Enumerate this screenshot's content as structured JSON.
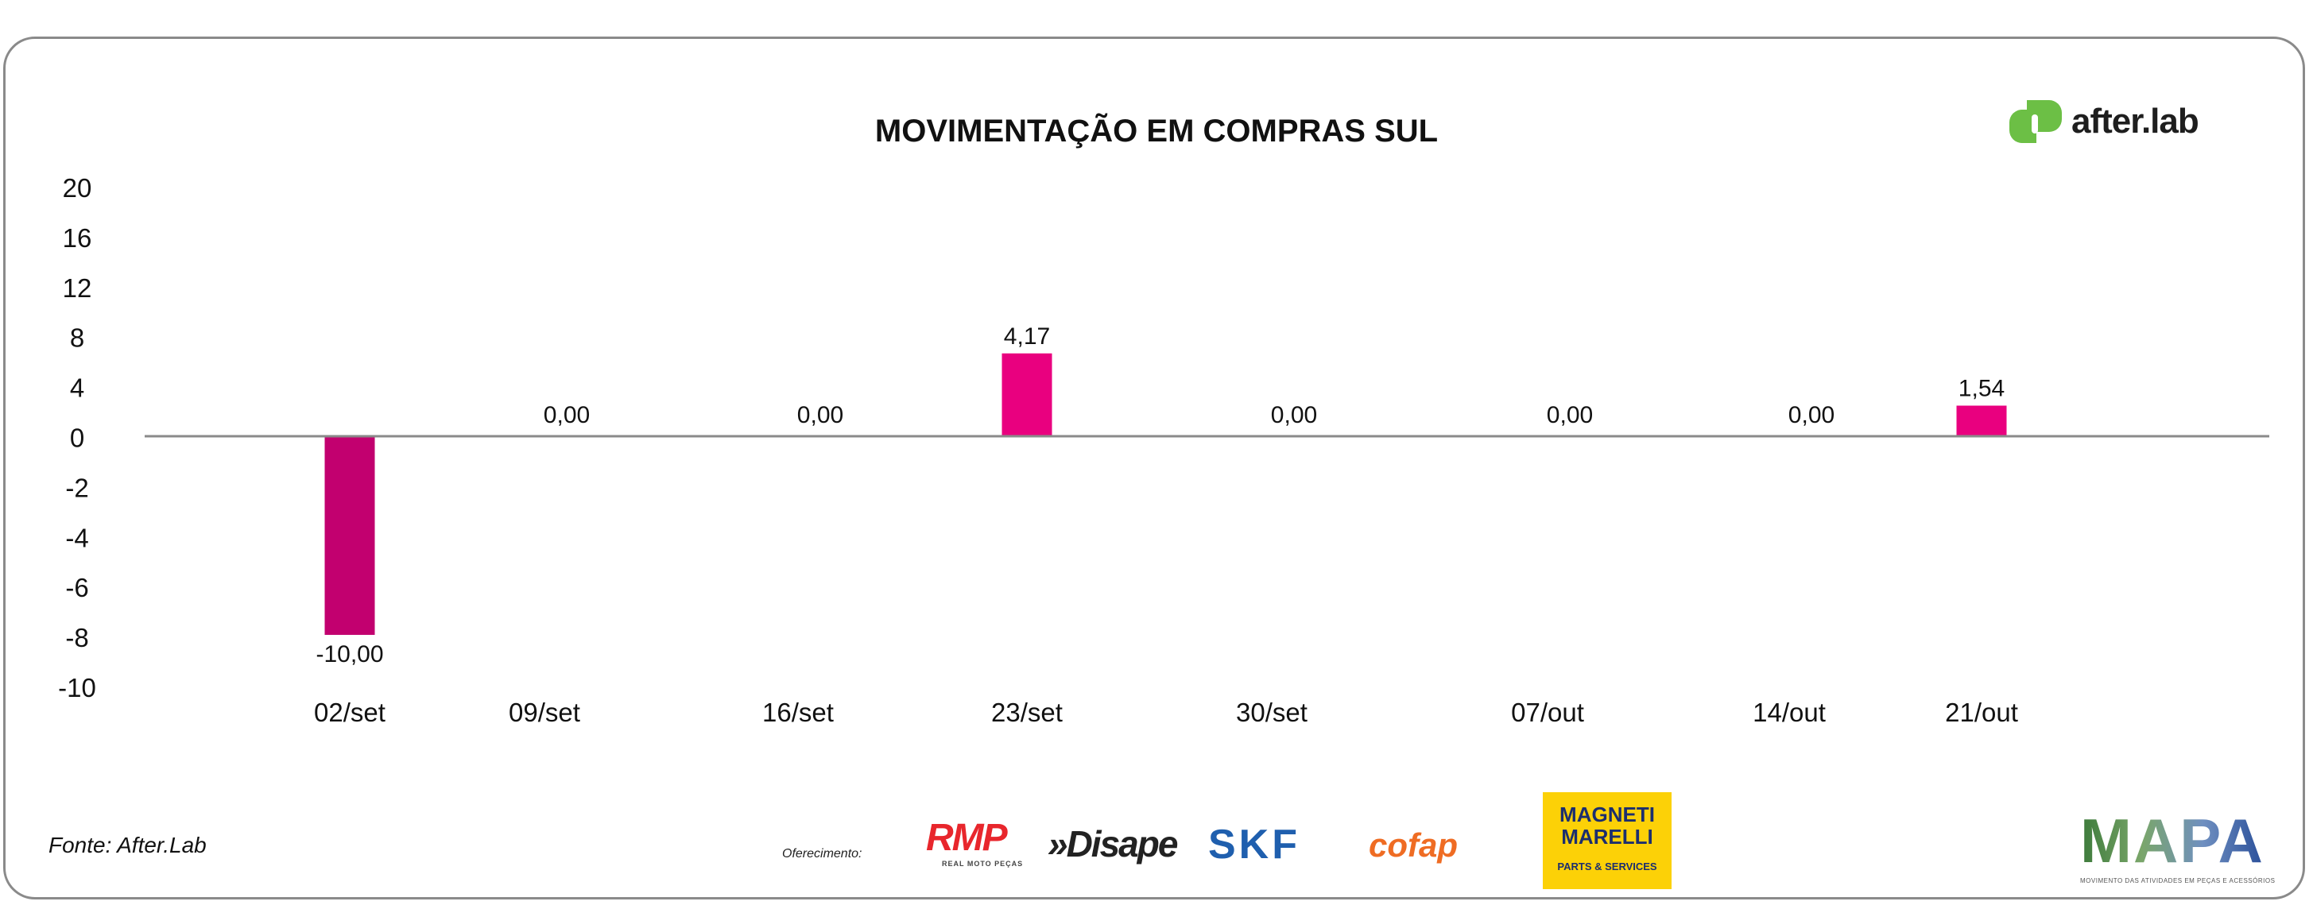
{
  "chart_data": {
    "type": "bar",
    "title": "MOVIMENTAÇÃO EM COMPRAS SUL",
    "categories": [
      "02/set",
      "09/set",
      "16/set",
      "23/set",
      "30/set",
      "07/out",
      "14/out",
      "21/out"
    ],
    "values": [
      -10.0,
      0.0,
      0.0,
      4.17,
      0.0,
      0.0,
      0.0,
      1.54
    ],
    "value_labels": [
      "-10,00",
      "0,00",
      "0,00",
      "4,17",
      "0,00",
      "0,00",
      "0,00",
      "1,54"
    ],
    "y_tick_labels": [
      "20",
      "16",
      "12",
      "8",
      "4",
      "0",
      "-2",
      "-4",
      "-6",
      "-8",
      "-10"
    ],
    "xlabel": "",
    "ylabel": "",
    "ylim": [
      -10,
      20
    ],
    "grid": false,
    "legend": "none",
    "colors": {
      "negative": "#C2006F",
      "positive": "#E9007F",
      "axis": "#8a8a8a"
    }
  },
  "brand": {
    "name": "after.lab",
    "color": "#6CBF45"
  },
  "footer": {
    "source": "Fonte: After.Lab",
    "sponsor_label": "Oferecimento:",
    "sponsors": {
      "rmp": "RMP",
      "rmp_sub": "REAL MOTO PEÇAS",
      "disape": "»Disape",
      "skf": "SKF",
      "cofap": "cofap",
      "magneti": "MAGNETI MARELLI",
      "magneti_sub": "PARTS & SERVICES",
      "mapa": "MAPA",
      "mapa_sub": "MOVIMENTO DAS ATIVIDADES EM PEÇAS E ACESSÓRIOS"
    }
  }
}
